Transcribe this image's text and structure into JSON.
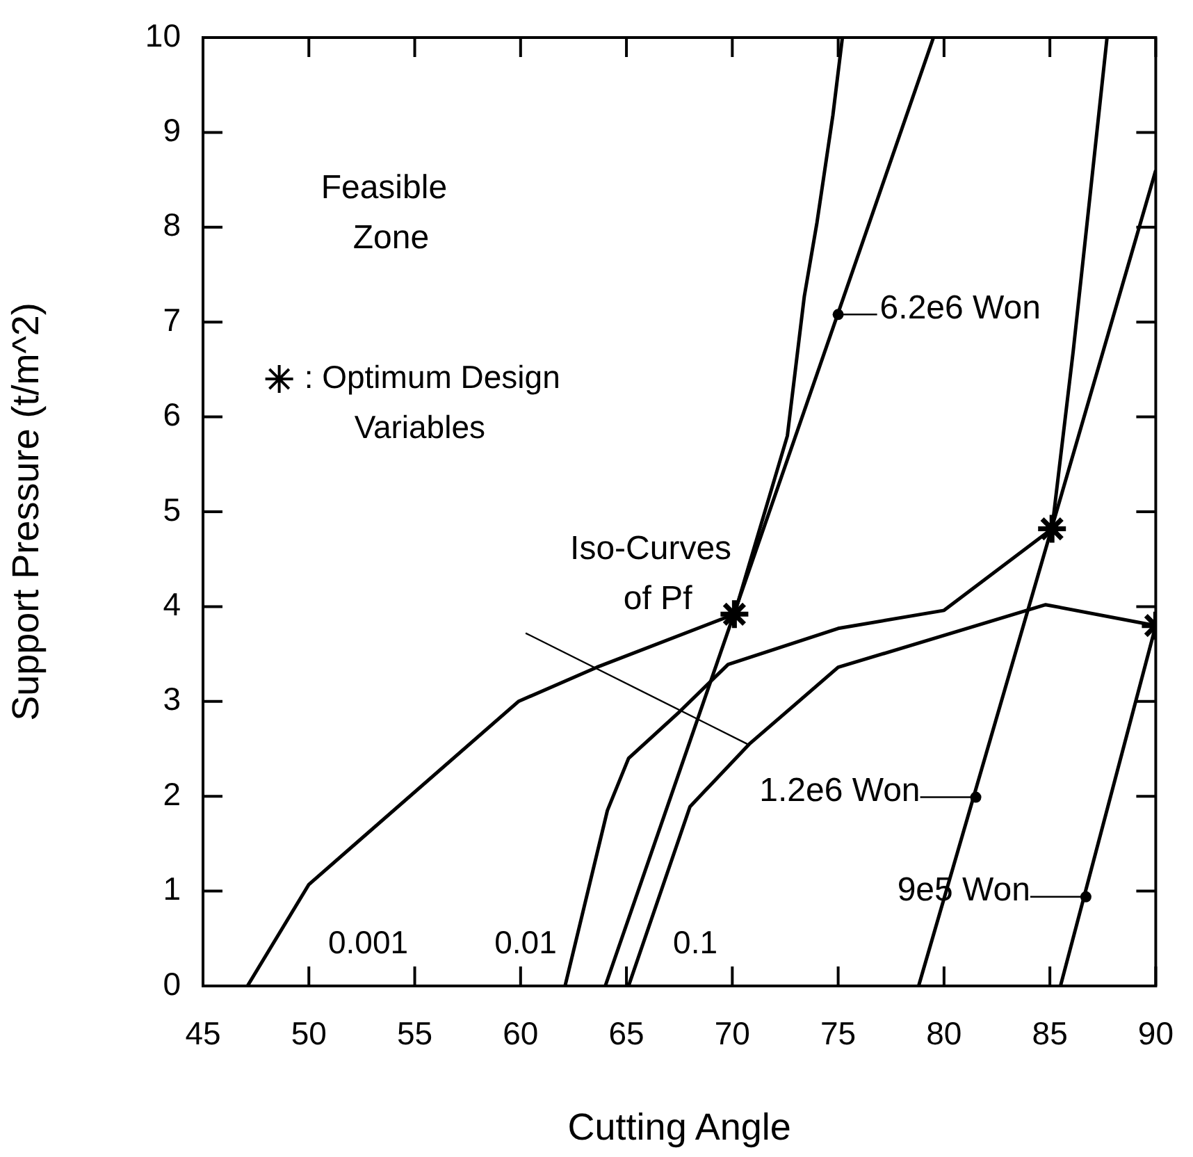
{
  "chart_data": {
    "type": "line",
    "xlabel": "Cutting Angle",
    "ylabel": "Support Pressure (t/m^2)",
    "xlim": [
      45,
      90
    ],
    "xticks": [
      45,
      50,
      55,
      60,
      65,
      70,
      75,
      80,
      85,
      90
    ],
    "ylim": [
      0,
      10
    ],
    "yticks": [
      0,
      1,
      2,
      3,
      4,
      5,
      6,
      7,
      8,
      9,
      10
    ],
    "grid": false,
    "legend": "top left",
    "line_style": "solid",
    "marker": "none",
    "series": [
      {
        "name": "0.001",
        "color": "#000000",
        "x": [
          47.1,
          50,
          59.9,
          63.6,
          70.1,
          72.6,
          73.4,
          74.0,
          74.75,
          75.2
        ],
        "values": [
          0,
          1.07,
          3.0,
          3.36,
          3.92,
          5.8,
          7.27,
          8.05,
          9.18,
          10
        ]
      },
      {
        "name": "0.01",
        "color": "#000000",
        "x": [
          62.1,
          64.1,
          65.1,
          67.5,
          69.8,
          75.0,
          80.0,
          85.1,
          86.1,
          86.9,
          87.7
        ],
        "values": [
          0,
          1.85,
          2.4,
          2.89,
          3.39,
          3.77,
          3.96,
          4.82,
          6.69,
          8.34,
          10
        ]
      },
      {
        "name": "0.1",
        "color": "#000000",
        "x": [
          65.1,
          68.0,
          70.8,
          75.0,
          84.8,
          90
        ],
        "values": [
          0,
          1.89,
          2.55,
          3.36,
          4.02,
          3.8
        ]
      },
      {
        "color": "#000000",
        "x": [
          64,
          79.5
        ],
        "values": [
          0,
          10
        ]
      },
      {
        "color": "#000000",
        "x": [
          78.8,
          90
        ],
        "values": [
          0,
          8.6
        ]
      },
      {
        "color": "#000000",
        "x": [
          85.5,
          90
        ],
        "values": [
          0,
          3.8
        ]
      },
      {
        "name": ": Optimum Design Variables",
        "type": "scatter",
        "marker": "cross",
        "color": "#000000",
        "x": [
          70.1,
          85.1,
          90
        ],
        "values": [
          3.92,
          4.82,
          3.8
        ]
      }
    ],
    "annotations": [
      "Feasible Zone",
      "Iso-Curves of Pf",
      {
        "text": "6.2e6 Won",
        "x": 75,
        "y": 7.08
      },
      {
        "text": "1.2e6 Won",
        "x": 81.5,
        "y": 1.99
      },
      {
        "text": "9e5 Won",
        "x": 86.7,
        "y": 0.94
      }
    ]
  }
}
